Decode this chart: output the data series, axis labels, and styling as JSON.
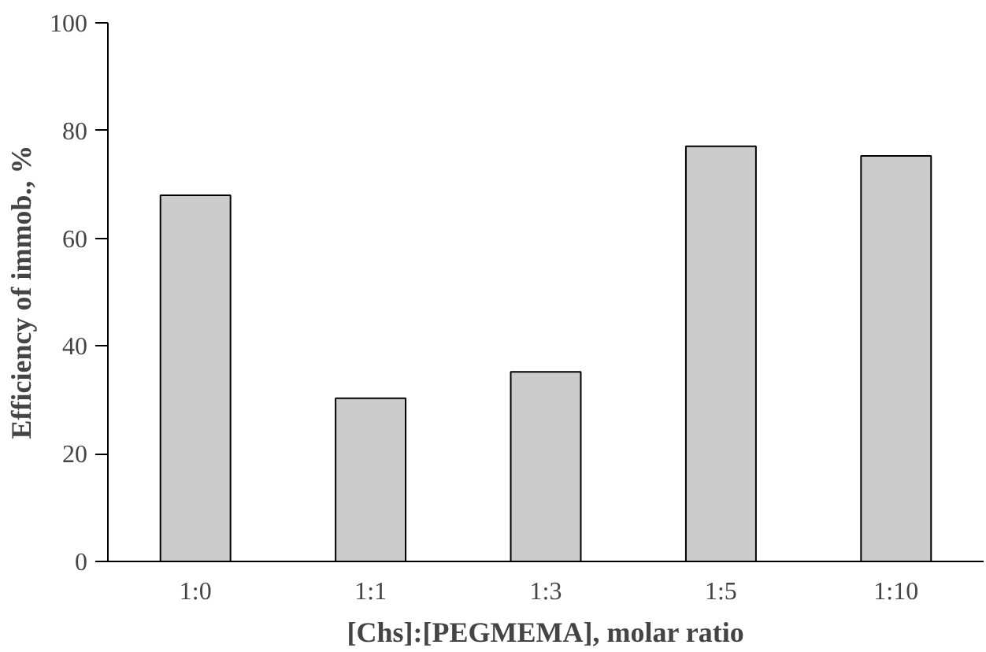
{
  "chart_data": {
    "type": "bar",
    "xlabel": "[Chs]:[PEGMEMA], molar ratio",
    "ylabel": "Efficiency of immob., %",
    "categories": [
      "1:0",
      "1:1",
      "1:3",
      "1:5",
      "1:10"
    ],
    "values": [
      68,
      30.3,
      35.2,
      77.1,
      75.3
    ],
    "color": "#cccccc",
    "ylim": [
      0,
      100
    ],
    "yticks": [
      0,
      20,
      40,
      60,
      80,
      100
    ],
    "grid": false
  }
}
